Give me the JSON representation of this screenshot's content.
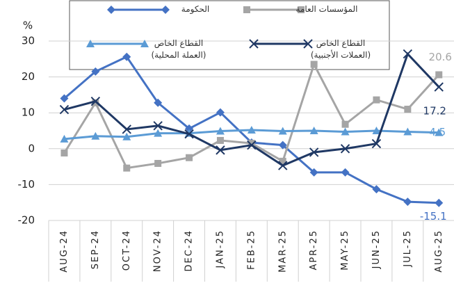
{
  "chart_data": {
    "type": "line",
    "y_label": "%",
    "categories": [
      "AUG-24",
      "SEP-24",
      "OCT-24",
      "NOV-24",
      "DEC-24",
      "JAN-25",
      "FEB-25",
      "MAR-25",
      "APR-25",
      "MAY-25",
      "JUN-25",
      "JUL-25",
      "AUG-25"
    ],
    "ylim": [
      -20,
      30
    ],
    "yticks": [
      -20,
      -10,
      0,
      10,
      20,
      30
    ],
    "grid": true,
    "series": [
      {
        "name": "الحكومة",
        "color": "#4472c4",
        "marker": "diamond",
        "values": [
          14,
          21.5,
          25.6,
          12.8,
          5.6,
          10.1,
          1.7,
          1,
          -6.6,
          -6.6,
          -11.3,
          -14.8,
          -15.1
        ]
      },
      {
        "name": "المؤسسات العامة",
        "color": "#a5a5a5",
        "marker": "square",
        "values": [
          -1.2,
          12.8,
          -5.4,
          -4.1,
          -2.5,
          2.3,
          1.5,
          -3.5,
          23.5,
          6.8,
          13.6,
          11,
          20.6
        ]
      },
      {
        "name": "القطاع الخاص (العملة المحلية)",
        "color": "#5b9bd5",
        "marker": "triangle",
        "values": [
          2.7,
          3.5,
          3.3,
          4.3,
          4.3,
          4.9,
          5.2,
          4.9,
          5,
          4.7,
          5,
          4.7,
          4.5
        ]
      },
      {
        "name": "القطاع الخاص (العملات الأجنبية)",
        "color": "#1f3864",
        "marker": "x",
        "values": [
          10.9,
          13.2,
          5.4,
          6.4,
          4.1,
          -0.4,
          1,
          -4.7,
          -1,
          0,
          1.4,
          26.4,
          17.2
        ]
      }
    ]
  }
}
